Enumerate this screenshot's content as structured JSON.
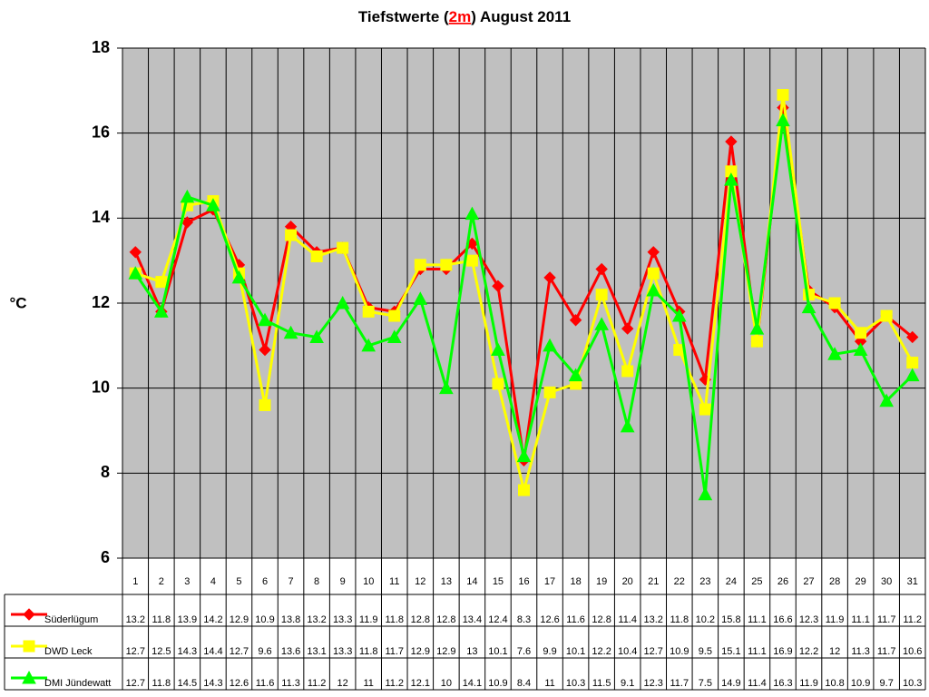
{
  "chart_data": {
    "type": "line",
    "title": [
      "Tiefstwerte (",
      "2m",
      ") August 2011"
    ],
    "y_label": "°C",
    "categories": [
      "1",
      "2",
      "3",
      "4",
      "5",
      "6",
      "7",
      "8",
      "9",
      "10",
      "11",
      "12",
      "13",
      "14",
      "15",
      "16",
      "17",
      "18",
      "19",
      "20",
      "21",
      "22",
      "23",
      "24",
      "25",
      "26",
      "27",
      "28",
      "29",
      "30",
      "31"
    ],
    "ylim": [
      6,
      18
    ],
    "yticks": [
      6,
      8,
      10,
      12,
      14,
      16,
      18
    ],
    "grid": true,
    "series": [
      {
        "name": "Süderlügum",
        "color": "#ff0000",
        "marker": "diamond",
        "values": [
          13.2,
          11.8,
          13.9,
          14.2,
          12.9,
          10.9,
          13.8,
          13.2,
          13.3,
          11.9,
          11.8,
          12.8,
          12.8,
          13.4,
          12.4,
          8.3,
          12.6,
          11.6,
          12.8,
          11.4,
          13.2,
          11.8,
          10.2,
          15.8,
          11.1,
          16.6,
          12.3,
          11.9,
          11.1,
          11.7,
          11.2
        ]
      },
      {
        "name": "DWD Leck",
        "color": "#ffff00",
        "marker": "square",
        "values": [
          12.7,
          12.5,
          14.3,
          14.4,
          12.7,
          9.6,
          13.6,
          13.1,
          13.3,
          11.8,
          11.7,
          12.9,
          12.9,
          13,
          10.1,
          7.6,
          9.9,
          10.1,
          12.2,
          10.4,
          12.7,
          10.9,
          9.5,
          15.1,
          11.1,
          16.9,
          12.2,
          12,
          11.3,
          11.7,
          10.6
        ]
      },
      {
        "name": "DMI Jündewatt",
        "color": "#00ff00",
        "marker": "triangle",
        "values": [
          12.7,
          11.8,
          14.5,
          14.3,
          12.6,
          11.6,
          11.3,
          11.2,
          12,
          11,
          11.2,
          12.1,
          10,
          14.1,
          10.9,
          8.4,
          11,
          10.3,
          11.5,
          9.1,
          12.3,
          11.7,
          7.5,
          14.9,
          11.4,
          16.3,
          11.9,
          10.8,
          10.9,
          9.7,
          10.3
        ]
      }
    ]
  }
}
